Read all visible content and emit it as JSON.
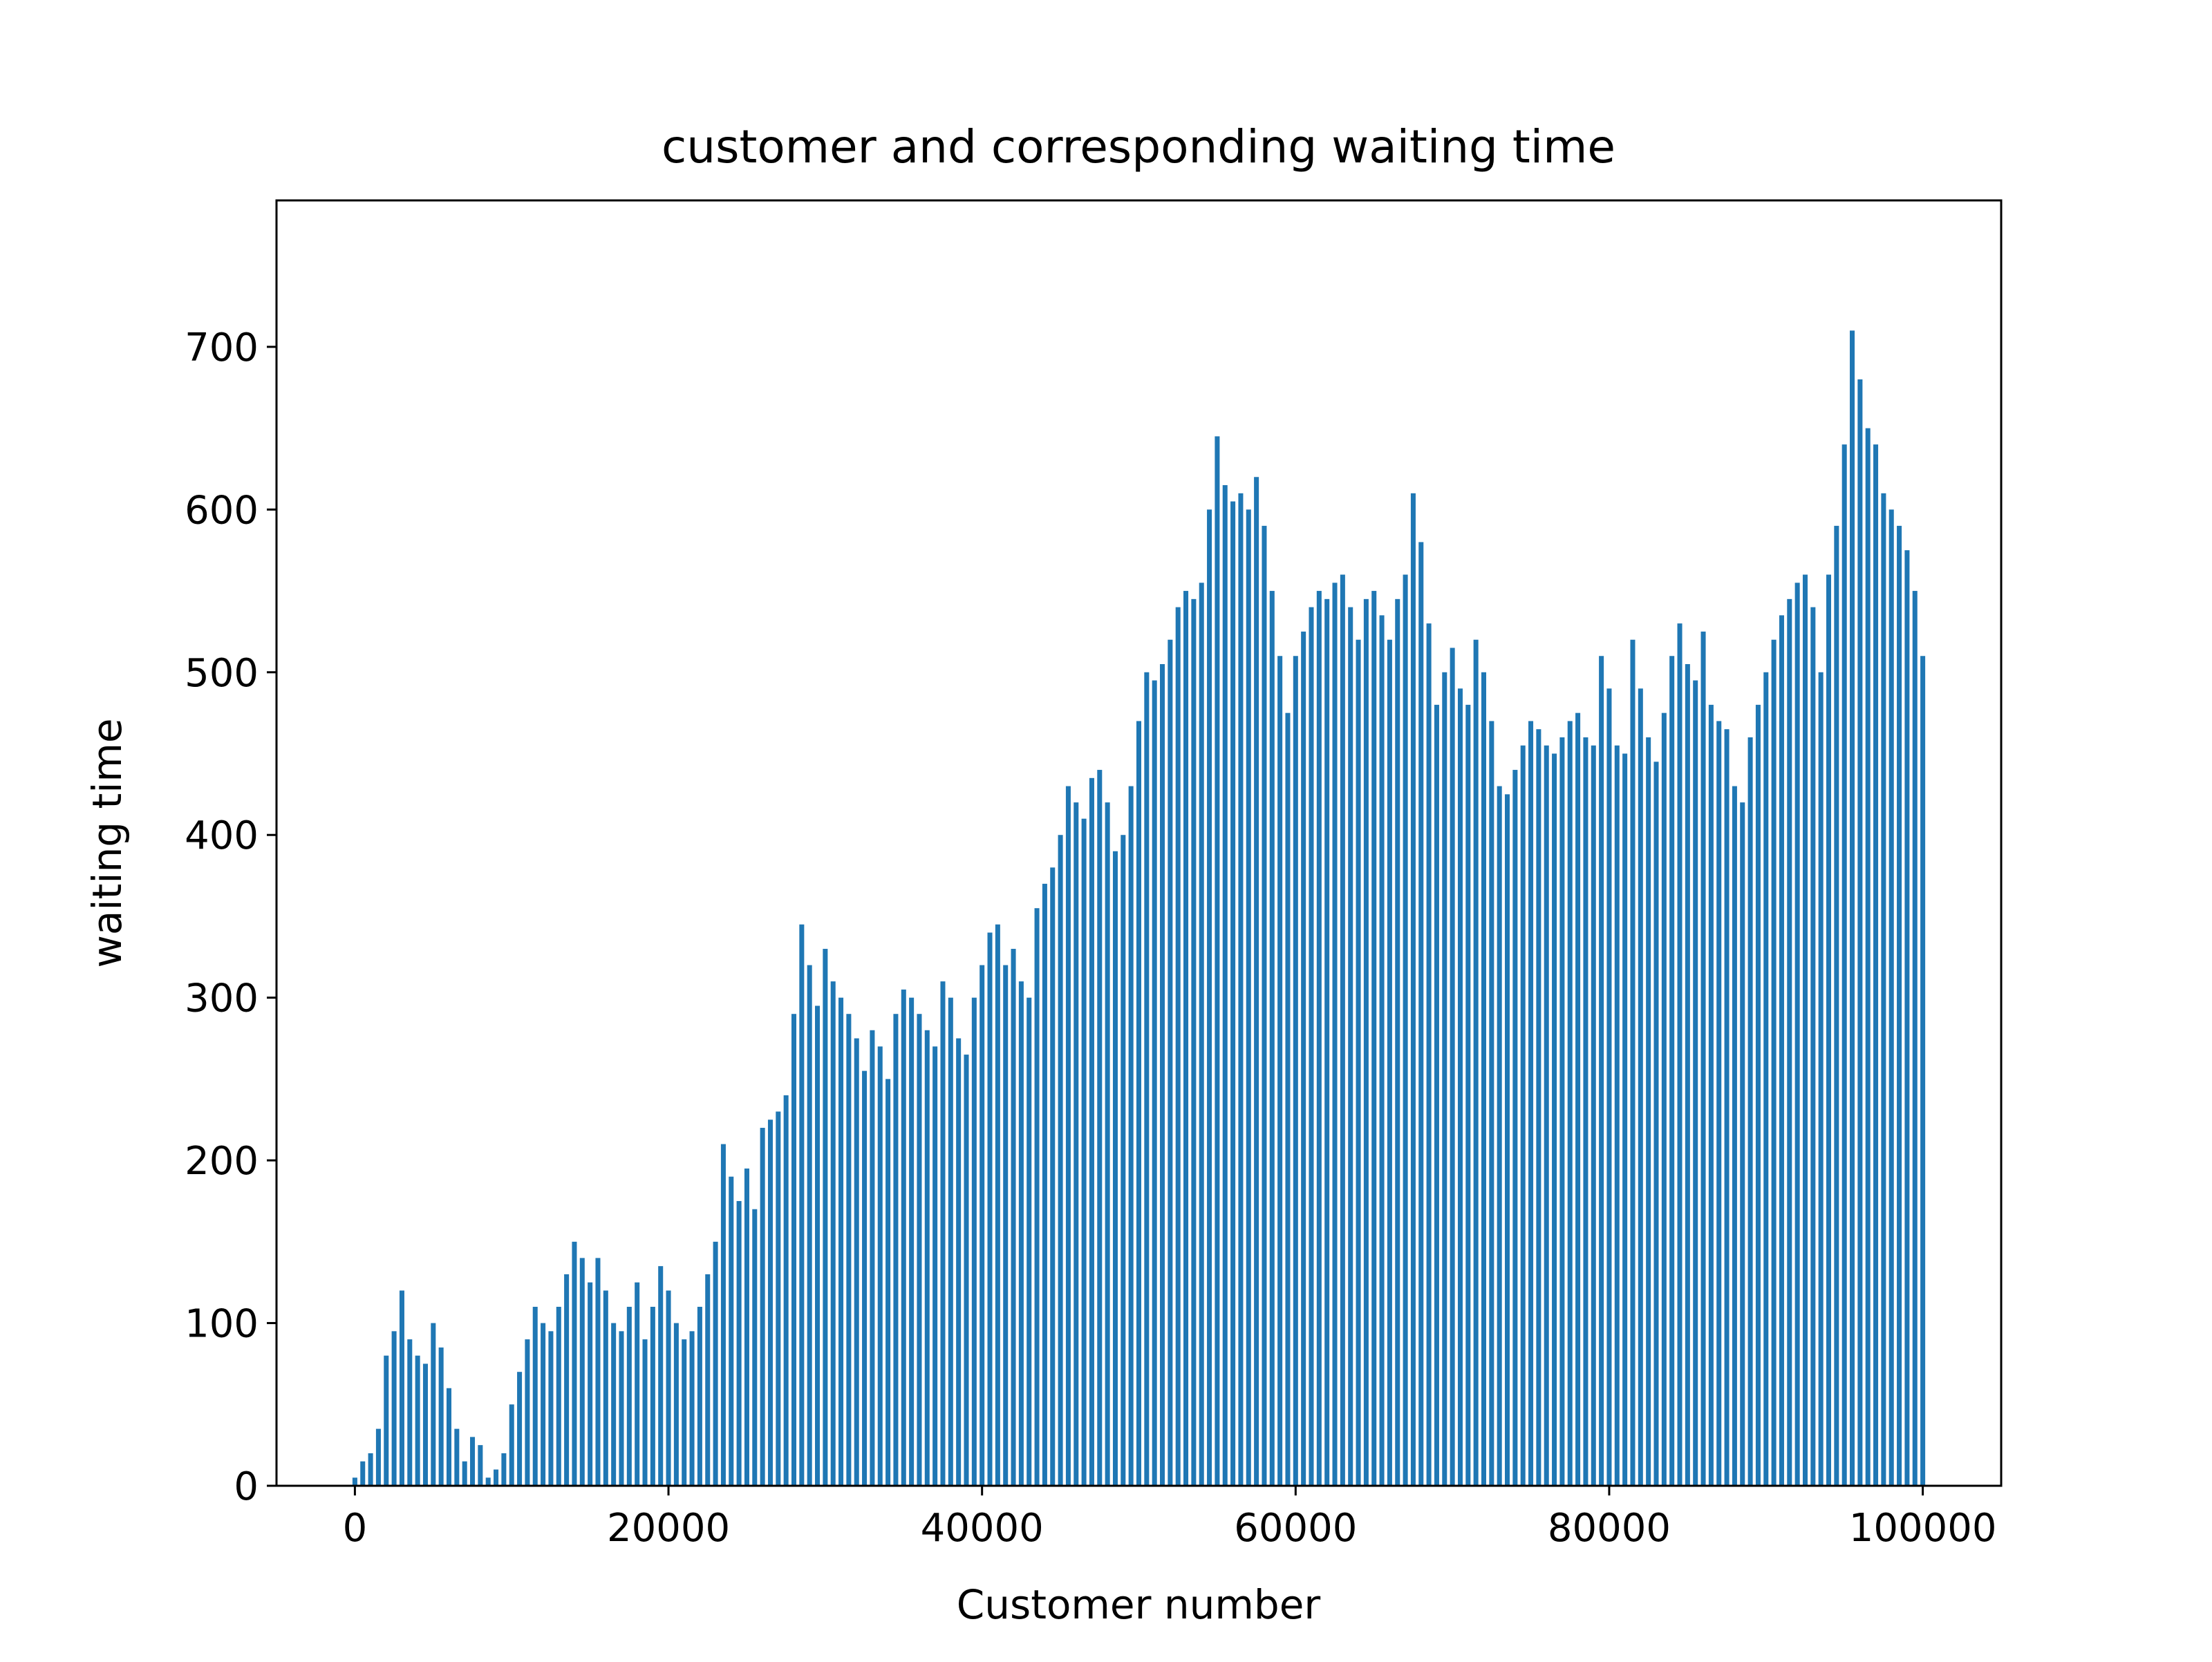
{
  "chart_data": {
    "type": "bar",
    "title": "customer and corresponding waiting time",
    "xlabel": "Customer number",
    "ylabel": "waiting time",
    "xlim": [
      -5000,
      105000
    ],
    "ylim": [
      0,
      790
    ],
    "x_ticks": [
      0,
      20000,
      40000,
      60000,
      80000,
      100000
    ],
    "x_tick_labels": [
      "0",
      "20000",
      "40000",
      "60000",
      "80000",
      "100000"
    ],
    "y_ticks": [
      0,
      100,
      200,
      300,
      400,
      500,
      600,
      700
    ],
    "y_tick_labels": [
      "0",
      "100",
      "200",
      "300",
      "400",
      "500",
      "600",
      "700"
    ],
    "grid": false,
    "legend": "none",
    "bar_color": "#1f77b4",
    "series": [
      {
        "x": [
          0,
          500,
          1000,
          1500,
          2000,
          2500,
          3000,
          3500,
          4000,
          4500,
          5000,
          5500,
          6000,
          6500,
          7000,
          7500,
          8000,
          8500,
          9000,
          9500,
          10000,
          10500,
          11000,
          11500,
          12000,
          12500,
          13000,
          13500,
          14000,
          14500,
          15000,
          15500,
          16000,
          16500,
          17000,
          17500,
          18000,
          18500,
          19000,
          19500,
          20000,
          20500,
          21000,
          21500,
          22000,
          22500,
          23000,
          23500,
          24000,
          24500,
          25000,
          25500,
          26000,
          26500,
          27000,
          27500,
          28000,
          28500,
          29000,
          29500,
          30000,
          30500,
          31000,
          31500,
          32000,
          32500,
          33000,
          33500,
          34000,
          34500,
          35000,
          35500,
          36000,
          36500,
          37000,
          37500,
          38000,
          38500,
          39000,
          39500,
          40000,
          40500,
          41000,
          41500,
          42000,
          42500,
          43000,
          43500,
          44000,
          44500,
          45000,
          45500,
          46000,
          46500,
          47000,
          47500,
          48000,
          48500,
          49000,
          49500,
          50000,
          50500,
          51000,
          51500,
          52000,
          52500,
          53000,
          53500,
          54000,
          54500,
          55000,
          55500,
          56000,
          56500,
          57000,
          57500,
          58000,
          58500,
          59000,
          59500,
          60000,
          60500,
          61000,
          61500,
          62000,
          62500,
          63000,
          63500,
          64000,
          64500,
          65000,
          65500,
          66000,
          66500,
          67000,
          67500,
          68000,
          68500,
          69000,
          69500,
          70000,
          70500,
          71000,
          71500,
          72000,
          72500,
          73000,
          73500,
          74000,
          74500,
          75000,
          75500,
          76000,
          76500,
          77000,
          77500,
          78000,
          78500,
          79000,
          79500,
          80000,
          80500,
          81000,
          81500,
          82000,
          82500,
          83000,
          83500,
          84000,
          84500,
          85000,
          85500,
          86000,
          86500,
          87000,
          87500,
          88000,
          88500,
          89000,
          89500,
          90000,
          90500,
          91000,
          91500,
          92000,
          92500,
          93000,
          93500,
          94000,
          94500,
          95000,
          95500,
          96000,
          96500,
          97000,
          97500,
          98000,
          98500,
          99000,
          99500,
          100000
        ],
        "values": [
          5,
          15,
          20,
          35,
          80,
          95,
          120,
          90,
          80,
          75,
          100,
          85,
          60,
          35,
          15,
          30,
          25,
          5,
          10,
          20,
          50,
          70,
          90,
          110,
          100,
          95,
          110,
          130,
          150,
          140,
          125,
          140,
          120,
          100,
          95,
          110,
          125,
          90,
          110,
          135,
          120,
          100,
          90,
          95,
          110,
          130,
          150,
          210,
          190,
          175,
          195,
          170,
          220,
          225,
          230,
          240,
          290,
          345,
          320,
          295,
          330,
          310,
          300,
          290,
          275,
          255,
          280,
          270,
          250,
          290,
          305,
          300,
          290,
          280,
          270,
          310,
          300,
          275,
          265,
          300,
          320,
          340,
          345,
          320,
          330,
          310,
          300,
          355,
          370,
          380,
          400,
          430,
          420,
          410,
          435,
          440,
          420,
          390,
          400,
          430,
          470,
          500,
          495,
          505,
          520,
          540,
          550,
          545,
          555,
          600,
          645,
          615,
          605,
          610,
          600,
          620,
          590,
          550,
          510,
          475,
          510,
          525,
          540,
          550,
          545,
          555,
          560,
          540,
          520,
          545,
          550,
          535,
          520,
          545,
          560,
          610,
          580,
          530,
          480,
          500,
          515,
          490,
          480,
          520,
          500,
          470,
          430,
          425,
          440,
          455,
          470,
          465,
          455,
          450,
          460,
          470,
          475,
          460,
          455,
          510,
          490,
          455,
          450,
          520,
          490,
          460,
          445,
          475,
          510,
          530,
          505,
          495,
          525,
          480,
          470,
          465,
          430,
          420,
          460,
          480,
          500,
          520,
          535,
          545,
          555,
          560,
          540,
          500,
          560,
          590,
          640,
          710,
          680,
          650,
          640,
          610,
          600,
          590,
          575,
          550,
          510
        ]
      }
    ]
  }
}
